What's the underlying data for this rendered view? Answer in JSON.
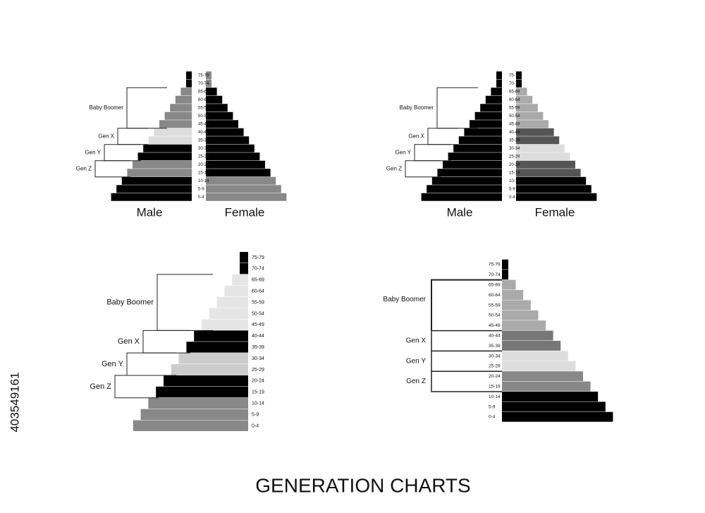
{
  "title": "GENERATION CHARTS",
  "age_groups": [
    "75-79",
    "70-74",
    "65-69",
    "60-64",
    "55-59",
    "50-54",
    "45-49",
    "40-44",
    "35-39",
    "30-34",
    "25-29",
    "20-24",
    "15-19",
    "10-14",
    "5-9",
    "0-4"
  ],
  "generations": [
    "Baby Boomer",
    "Gen X",
    "Gen Y",
    "Gen Z"
  ],
  "sexes": [
    "Male",
    "Female"
  ],
  "image_id": "403549161"
}
